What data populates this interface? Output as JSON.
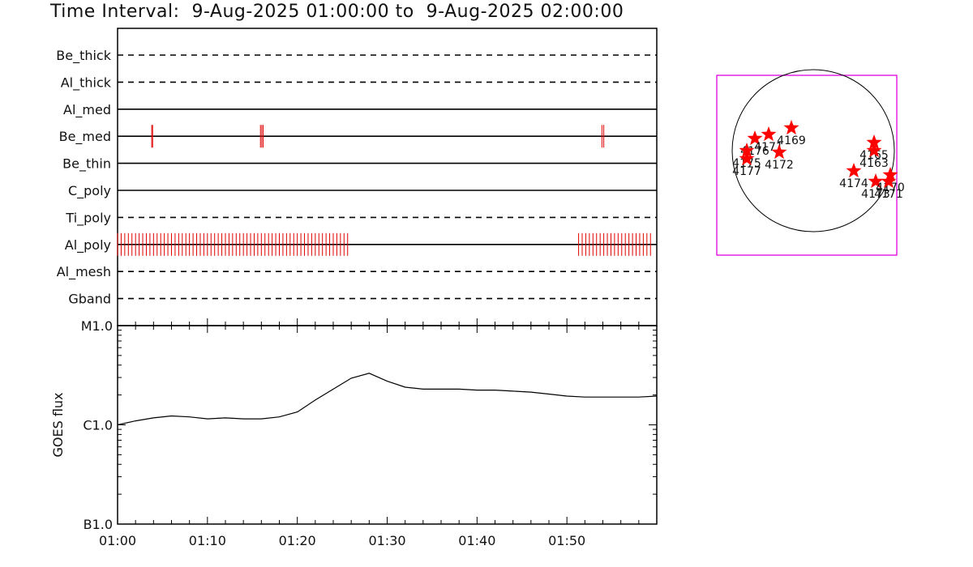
{
  "title": "Time Interval:  9-Aug-2025 01:00:00 to  9-Aug-2025 02:00:00",
  "colors": {
    "event": "#e00000",
    "axis": "#000000",
    "fov_box": "#e000e0",
    "star": "#ff0000"
  },
  "chart_data": [
    {
      "type": "timeline",
      "x_ticks": [
        "01:00",
        "01:10",
        "01:20",
        "01:30",
        "01:40",
        "01:50"
      ],
      "xlim_minutes": [
        0,
        60
      ],
      "rows": [
        {
          "name": "Be_thick",
          "style": "dashed",
          "events_min": []
        },
        {
          "name": "Al_thick",
          "style": "dashed",
          "events_min": []
        },
        {
          "name": "Al_med",
          "style": "solid",
          "events_min": []
        },
        {
          "name": "Be_med",
          "style": "solid",
          "events_min": [
            3.8,
            3.9,
            15.9,
            16.05,
            16.2,
            53.9,
            54.1
          ]
        },
        {
          "name": "Be_thin",
          "style": "solid",
          "events_min": []
        },
        {
          "name": "C_poly",
          "style": "solid",
          "events_min": []
        },
        {
          "name": "Ti_poly",
          "style": "dashed",
          "events_min": []
        },
        {
          "name": "Al_poly",
          "style": "solid",
          "events_ranges_min": [
            [
              0,
              25.6
            ],
            [
              51.3,
              59.6
            ]
          ],
          "event_spacing_min": 0.4
        },
        {
          "name": "Al_mesh",
          "style": "dashed",
          "events_min": []
        },
        {
          "name": "Gband",
          "style": "dashed",
          "events_min": []
        }
      ]
    },
    {
      "type": "line",
      "ylabel": "GOES flux",
      "y_ticks": [
        "M1.0",
        "C1.0",
        "B1.0"
      ],
      "log_scale": true,
      "ylim": [
        "B1.0",
        "M1.0"
      ],
      "x_ticks": [
        "01:00",
        "01:10",
        "01:20",
        "01:30",
        "01:40",
        "01:50"
      ],
      "series": [
        {
          "x_min": [
            0,
            2,
            4,
            6,
            8,
            10,
            12,
            14,
            16,
            18,
            20,
            22,
            24,
            26,
            28,
            30,
            32,
            34,
            36,
            38,
            40,
            42,
            44,
            46,
            48,
            50,
            52,
            54,
            56,
            58,
            60
          ],
          "y_log_decade": [
            1.0,
            1.04,
            1.07,
            1.09,
            1.08,
            1.06,
            1.07,
            1.06,
            1.06,
            1.08,
            1.13,
            1.25,
            1.36,
            1.47,
            1.52,
            1.44,
            1.38,
            1.36,
            1.36,
            1.36,
            1.35,
            1.35,
            1.34,
            1.33,
            1.31,
            1.29,
            1.28,
            1.28,
            1.28,
            1.28,
            1.29
          ]
        }
      ]
    },
    {
      "type": "scatter",
      "description_free": true,
      "points": [
        {
          "label": "4176",
          "x": -0.72,
          "y": 0.15
        },
        {
          "label": "4175",
          "x": -0.82,
          "y": 0.0
        },
        {
          "label": "4177",
          "x": -0.82,
          "y": -0.1
        },
        {
          "label": "4171",
          "x": -0.55,
          "y": 0.2
        },
        {
          "label": "4172",
          "x": -0.42,
          "y": -0.02
        },
        {
          "label": "4169",
          "x": -0.27,
          "y": 0.28
        },
        {
          "label": "4165",
          "x": 0.75,
          "y": 0.1
        },
        {
          "label": "4163",
          "x": 0.75,
          "y": 0.0
        },
        {
          "label": "4174",
          "x": 0.5,
          "y": -0.25
        },
        {
          "label": "4173",
          "x": 0.77,
          "y": -0.38
        },
        {
          "label": "4170",
          "x": 0.95,
          "y": -0.3
        },
        {
          "label": "4171",
          "x": 0.93,
          "y": -0.38
        }
      ]
    }
  ]
}
